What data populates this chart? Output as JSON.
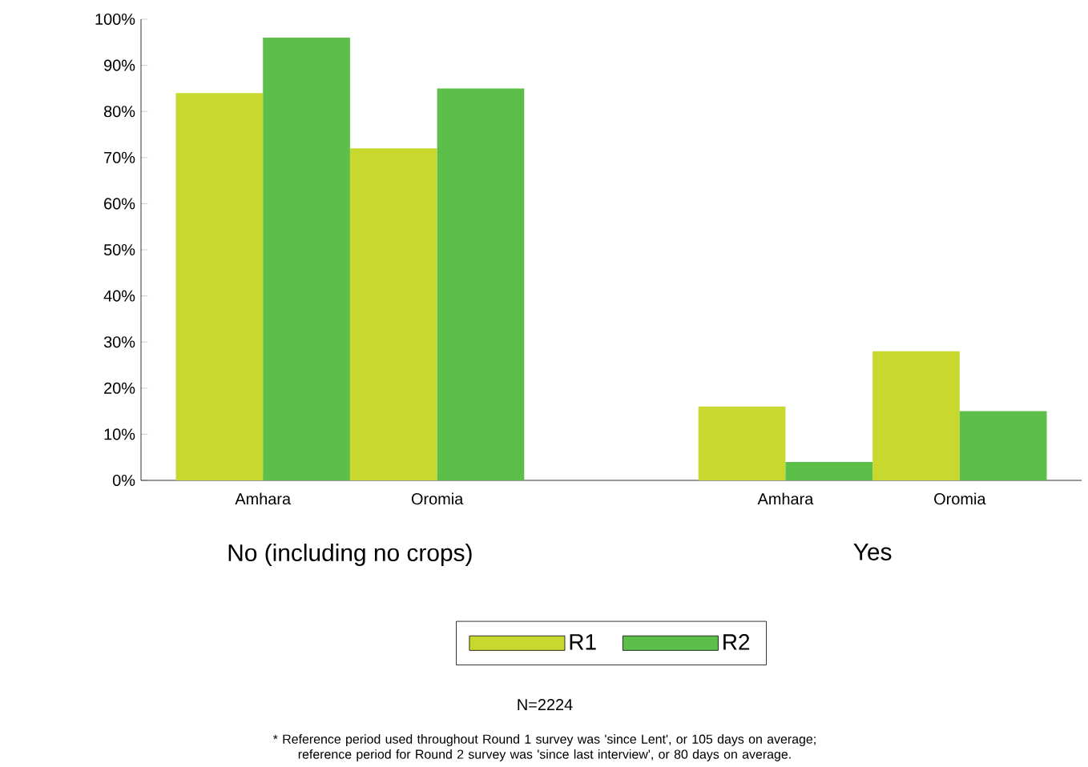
{
  "chart_data": {
    "type": "bar",
    "categories": [
      "Amhara",
      "Oromia",
      "Amhara",
      "Oromia"
    ],
    "series": [
      {
        "name": "R1",
        "color": "#c8d82e",
        "values": [
          84,
          72,
          16,
          28
        ]
      },
      {
        "name": "R2",
        "color": "#5cbf4a",
        "values": [
          96,
          85,
          4,
          15
        ]
      }
    ],
    "ylim": [
      0,
      100
    ],
    "yticks": [
      {
        "value": 0,
        "label": "0%"
      },
      {
        "value": 10,
        "label": "10%"
      },
      {
        "value": 20,
        "label": "20%"
      },
      {
        "value": 30,
        "label": "30%"
      },
      {
        "value": 40,
        "label": "40%"
      },
      {
        "value": 50,
        "label": "50%"
      },
      {
        "value": 60,
        "label": "60%"
      },
      {
        "value": 70,
        "label": "70%"
      },
      {
        "value": 80,
        "label": "80%"
      },
      {
        "value": 90,
        "label": "90%"
      },
      {
        "value": 100,
        "label": "100%"
      }
    ],
    "grid": false,
    "legend": "bottom",
    "annotations": [
      "No (including no crops)",
      "Yes",
      "N=2224",
      "* Reference period used throughout Round 1 survey was 'since Lent', or 105 days on average; reference period for Round 2 survey was 'since last interview', or 80 days on average."
    ]
  }
}
